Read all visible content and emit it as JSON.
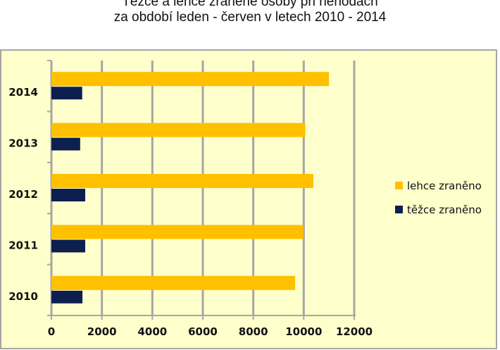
{
  "chart_data": {
    "type": "bar",
    "orientation": "horizontal",
    "title": "Těžce a lehce zraněné osoby při nehodách",
    "subtitle": "za období leden - červen v letech 2010 - 2014",
    "categories": [
      "2010",
      "2011",
      "2012",
      "2013",
      "2014"
    ],
    "series": [
      {
        "name": "lehce zraněno",
        "color": "#FFC000",
        "values": [
          9660,
          9980,
          10380,
          10060,
          11000
        ]
      },
      {
        "name": "těžce zraněno",
        "color": "#0D1F4F",
        "values": [
          1230,
          1340,
          1340,
          1140,
          1220
        ]
      }
    ],
    "xlim": [
      0,
      12000
    ],
    "xticks": [
      0,
      2000,
      4000,
      6000,
      8000,
      10000,
      12000
    ],
    "grid": true,
    "legend_position": "right",
    "plot_background": "#FFFFCC",
    "frame_color": "#A6A6A6"
  }
}
